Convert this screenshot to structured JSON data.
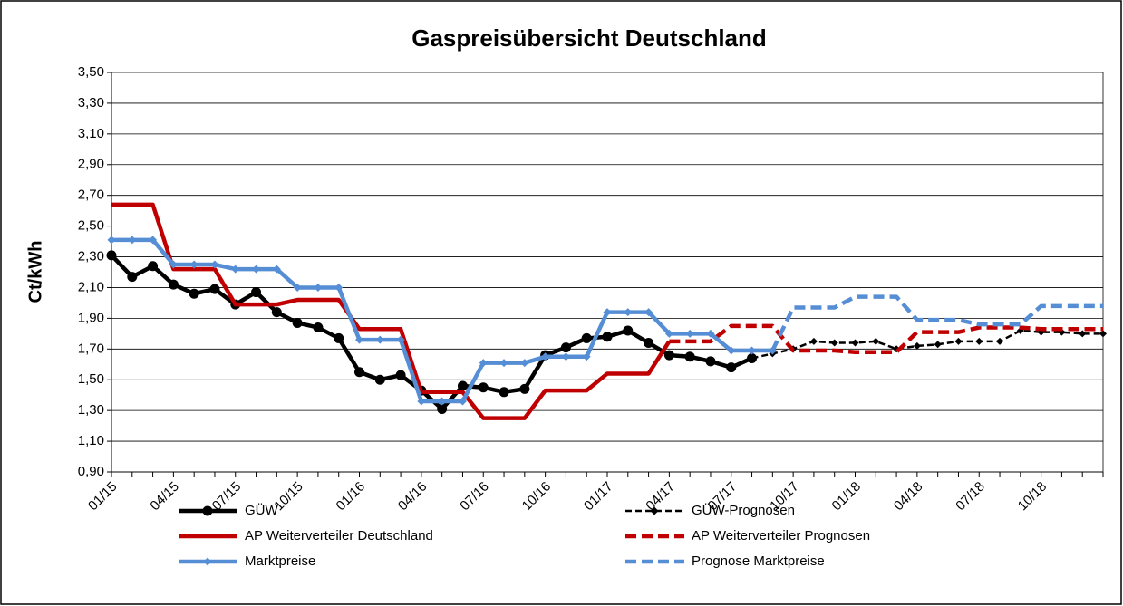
{
  "chart_data": {
    "type": "line",
    "title": "Gaspreisübersicht Deutschland",
    "y_label": "Ct/kWh",
    "categories": [
      "01/15",
      null,
      null,
      "04/15",
      null,
      null,
      "07/15",
      null,
      null,
      "10/15",
      null,
      null,
      "01/16",
      null,
      null,
      "04/16",
      null,
      null,
      "07/16",
      null,
      null,
      "10/16",
      null,
      null,
      "01/17",
      null,
      null,
      "04/17",
      null,
      null,
      "07/17",
      null,
      null,
      "10/17",
      null,
      null,
      "01/18",
      null,
      null,
      "04/18",
      null,
      null,
      "07/18",
      null,
      null,
      "10/18",
      null,
      null,
      null
    ],
    "ylim": [
      0.9,
      3.5
    ],
    "yticks": [
      {
        "value": 0.9,
        "label": "0,90"
      },
      {
        "value": 1.1,
        "label": "1,10"
      },
      {
        "value": 1.3,
        "label": "1,30"
      },
      {
        "value": 1.5,
        "label": "1,50"
      },
      {
        "value": 1.7,
        "label": "1,70"
      },
      {
        "value": 1.9,
        "label": "1,90"
      },
      {
        "value": 2.1,
        "label": "2,10"
      },
      {
        "value": 2.3,
        "label": "2,30"
      },
      {
        "value": 2.5,
        "label": "2,50"
      },
      {
        "value": 2.7,
        "label": "2,70"
      },
      {
        "value": 2.9,
        "label": "2,90"
      },
      {
        "value": 3.1,
        "label": "3,10"
      },
      {
        "value": 3.3,
        "label": "3,30"
      },
      {
        "value": 3.5,
        "label": "3,50"
      }
    ],
    "grid": true,
    "legend": "bottom",
    "series": [
      {
        "name": "GÜW",
        "color": "#000000",
        "dashed": false,
        "marker": "circle",
        "values": [
          2.31,
          2.17,
          2.24,
          2.12,
          2.06,
          2.09,
          1.99,
          2.07,
          1.94,
          1.87,
          1.84,
          1.77,
          1.55,
          1.5,
          1.53,
          1.43,
          1.31,
          1.46,
          1.45,
          1.42,
          1.44,
          1.66,
          1.71,
          1.77,
          1.78,
          1.82,
          1.74,
          1.66,
          1.65,
          1.62,
          1.58,
          1.64,
          null,
          null,
          null,
          null,
          null,
          null,
          null,
          null,
          null,
          null,
          null,
          null,
          null,
          null,
          null,
          null,
          null
        ]
      },
      {
        "name": "GÜW-Prognosen",
        "color": "#000000",
        "dashed": true,
        "marker": "diamond",
        "values": [
          null,
          null,
          null,
          null,
          null,
          null,
          null,
          null,
          null,
          null,
          null,
          null,
          null,
          null,
          null,
          null,
          null,
          null,
          null,
          null,
          null,
          null,
          null,
          null,
          null,
          null,
          null,
          null,
          null,
          null,
          null,
          1.64,
          1.67,
          1.7,
          1.75,
          1.74,
          1.74,
          1.75,
          1.7,
          1.72,
          1.73,
          1.75,
          1.75,
          1.75,
          1.82,
          1.81,
          1.81,
          1.8,
          1.8
        ]
      },
      {
        "name": "AP Weiterverteiler Deutschland",
        "color": "#c00000",
        "dashed": false,
        "marker": "none",
        "values": [
          2.64,
          2.64,
          2.64,
          2.22,
          2.22,
          2.22,
          1.99,
          1.99,
          1.99,
          2.02,
          2.02,
          2.02,
          1.83,
          1.83,
          1.83,
          1.42,
          1.42,
          1.42,
          1.25,
          1.25,
          1.25,
          1.43,
          1.43,
          1.43,
          1.54,
          1.54,
          1.54,
          1.75,
          null,
          null,
          null,
          null,
          null,
          null,
          null,
          null,
          null,
          null,
          null,
          null,
          null,
          null,
          null,
          null,
          null,
          null,
          null,
          null,
          null
        ]
      },
      {
        "name": "AP Weiterverteiler Prognosen",
        "color": "#c00000",
        "dashed": true,
        "marker": "none",
        "values": [
          null,
          null,
          null,
          null,
          null,
          null,
          null,
          null,
          null,
          null,
          null,
          null,
          null,
          null,
          null,
          null,
          null,
          null,
          null,
          null,
          null,
          null,
          null,
          null,
          null,
          null,
          null,
          1.75,
          1.75,
          1.75,
          1.85,
          1.85,
          1.85,
          1.69,
          1.69,
          1.69,
          1.68,
          1.68,
          1.68,
          1.81,
          1.81,
          1.81,
          1.84,
          1.84,
          1.84,
          1.83,
          1.83,
          1.83,
          1.83
        ]
      },
      {
        "name": "Marktpreise",
        "color": "#558ed5",
        "dashed": false,
        "marker": "diamond",
        "values": [
          2.41,
          2.41,
          2.41,
          2.25,
          2.25,
          2.25,
          2.22,
          2.22,
          2.22,
          2.1,
          2.1,
          2.1,
          1.76,
          1.76,
          1.76,
          1.36,
          1.36,
          1.36,
          1.61,
          1.61,
          1.61,
          1.65,
          1.65,
          1.65,
          1.94,
          1.94,
          1.94,
          1.8,
          1.8,
          1.8,
          1.69,
          1.69,
          1.69,
          null,
          null,
          null,
          null,
          null,
          null,
          null,
          null,
          null,
          null,
          null,
          null,
          null,
          null,
          null,
          null
        ]
      },
      {
        "name": "Prognose Marktpreise",
        "color": "#558ed5",
        "dashed": true,
        "marker": "none",
        "values": [
          null,
          null,
          null,
          null,
          null,
          null,
          null,
          null,
          null,
          null,
          null,
          null,
          null,
          null,
          null,
          null,
          null,
          null,
          null,
          null,
          null,
          null,
          null,
          null,
          null,
          null,
          null,
          null,
          null,
          null,
          null,
          null,
          1.69,
          1.97,
          1.97,
          1.97,
          2.04,
          2.04,
          2.04,
          1.89,
          1.89,
          1.89,
          1.86,
          1.86,
          1.86,
          1.98,
          1.98,
          1.98,
          1.98
        ]
      }
    ]
  }
}
